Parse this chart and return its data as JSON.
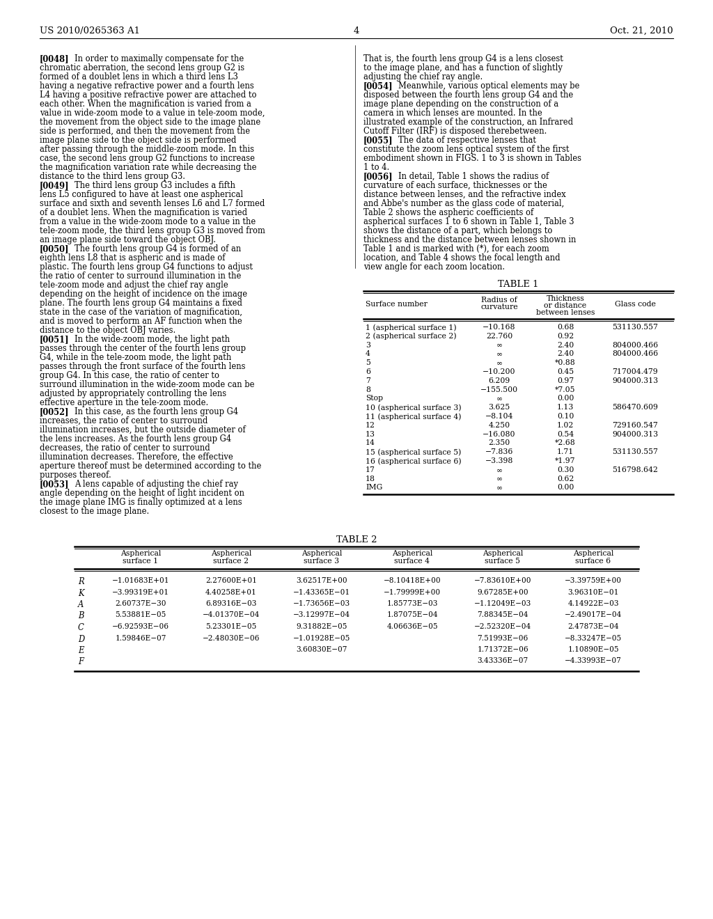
{
  "page_header_left": "US 2010/0265363 A1",
  "page_header_right": "Oct. 21, 2010",
  "page_number": "4",
  "background_color": "#ffffff",
  "left_paragraphs": [
    {
      "tag": "[0048]",
      "text": "In order to maximally compensate for the chromatic aberration, the second lens group G2 is formed of a doublet lens in which a third lens L3 having a negative refractive power and a fourth lens L4 having a positive refractive power are attached to each other. When the magnification is varied from a value in wide-zoom mode to a value in tele-zoom mode, the movement from the object side to the image plane side is performed, and then the movement from the image plane side to the object side is performed after passing through the middle-zoom mode. In this case, the second lens group G2 functions to increase the magnification variation rate while decreasing the distance to the third lens group G3."
    },
    {
      "tag": "[0049]",
      "text": "The third lens group G3 includes a fifth lens L5 configured to have at least one aspherical surface and sixth and seventh lenses L6 and L7 formed of a doublet lens. When the magnification is varied from a value in the wide-zoom mode to a value in the tele-zoom mode, the third lens group G3 is moved from an image plane side toward the object OBJ."
    },
    {
      "tag": "[0050]",
      "text": "The fourth lens group G4 is formed of an eighth lens L8 that is aspheric and is made of plastic. The fourth lens group G4 functions to adjust the ratio of center to surround illumination in the tele-zoom mode and adjust the chief ray angle depending on the height of incidence on the image plane. The fourth lens group G4 maintains a fixed state in the case of the variation of magnification, and is moved to perform an AF function when the distance to the object OBJ varies."
    },
    {
      "tag": "[0051]",
      "text": "In the wide-zoom mode, the light path passes through the center of the fourth lens group G4, while in the tele-zoom mode, the light path passes through the front surface of the fourth lens group G4. In this case, the ratio of center to surround illumination in the wide-zoom mode can be adjusted by appropriately controlling the lens effective aperture in the tele-zoom mode."
    },
    {
      "tag": "[0052]",
      "text": "In this case, as the fourth lens group G4 increases, the ratio of center to surround illumination increases, but the outside diameter of the lens increases. As the fourth lens group G4 decreases, the ratio of center to surround illumination decreases. Therefore, the effective aperture thereof must be determined according to the purposes thereof."
    },
    {
      "tag": "[0053]",
      "text": "A lens capable of adjusting the chief ray angle depending on the height of light incident on the image plane IMG is finally optimized at a lens closest to the image plane."
    }
  ],
  "right_paragraphs": [
    {
      "tag": "",
      "text": "That is, the fourth lens group G4 is a lens closest to the image plane, and has a function of slightly adjusting the chief ray angle."
    },
    {
      "tag": "[0054]",
      "text": "Meanwhile, various optical elements may be disposed between the fourth lens group G4 and the image plane depending on the construction of a camera in which lenses are mounted. In the illustrated example of the construction, an Infrared Cutoff Filter (IRF) is disposed therebetween."
    },
    {
      "tag": "[0055]",
      "text": "The data of respective lenses that constitute the zoom lens optical system of the first embodiment shown in FIGS. 1 to 3 is shown in Tables 1 to 4."
    },
    {
      "tag": "[0056]",
      "text": "In detail, Table 1 shows the radius of curvature of each surface, thicknesses or the distance between lenses, and the refractive index and Abbe's number as the glass code of material, Table 2 shows the aspheric coefficients of aspherical surfaces 1 to 6 shown in Table 1, Table 3 shows the distance of a part, which belongs to thickness and the distance between lenses shown in Table 1 and is marked with (*), for each zoom location, and Table 4 shows the focal length and view angle for each zoom location."
    }
  ],
  "table1_title": "TABLE 1",
  "table1_col_headers": [
    "Surface number",
    "Radius of\ncurvature",
    "Thickness\nor distance\nbetween lenses",
    "Glass code"
  ],
  "table1_rows": [
    [
      "1 (aspherical surface 1)",
      "−10.168",
      "0.68",
      "531130.557"
    ],
    [
      "2 (aspherical surface 2)",
      "22.760",
      "0.92",
      ""
    ],
    [
      "3",
      "∞",
      "2.40",
      "804000.466"
    ],
    [
      "4",
      "∞",
      "2.40",
      "804000.466"
    ],
    [
      "5",
      "∞",
      "*0.88",
      ""
    ],
    [
      "6",
      "−10.200",
      "0.45",
      "717004.479"
    ],
    [
      "7",
      "6.209",
      "0.97",
      "904000.313"
    ],
    [
      "8",
      "−155.500",
      "*7.05",
      ""
    ],
    [
      "Stop",
      "∞",
      "0.00",
      ""
    ],
    [
      "10 (aspherical surface 3)",
      "3.625",
      "1.13",
      "586470.609"
    ],
    [
      "11 (aspherical surface 4)",
      "−8.104",
      "0.10",
      ""
    ],
    [
      "12",
      "4.250",
      "1.02",
      "729160.547"
    ],
    [
      "13",
      "−16.080",
      "0.54",
      "904000.313"
    ],
    [
      "14",
      "2.350",
      "*2.68",
      ""
    ],
    [
      "15 (aspherical surface 5)",
      "−7.836",
      "1.71",
      "531130.557"
    ],
    [
      "16 (aspherical surface 6)",
      "−3.398",
      "*1.97",
      ""
    ],
    [
      "17",
      "∞",
      "0.30",
      "516798.642"
    ],
    [
      "18",
      "∞",
      "0.62",
      ""
    ],
    [
      "IMG",
      "∞",
      "0.00",
      ""
    ]
  ],
  "table2_title": "TABLE 2",
  "table2_col_headers": [
    "Aspherical\nsurface 1",
    "Aspherical\nsurface 2",
    "Aspherical\nsurface 3",
    "Aspherical\nsurface 4",
    "Aspherical\nsurface 5",
    "Aspherical\nsurface 6"
  ],
  "table2_row_labels": [
    "R",
    "K",
    "A",
    "B",
    "C",
    "D",
    "E",
    "F"
  ],
  "table2_data": [
    [
      "−1.01683E+01",
      "2.27600E+01",
      "3.62517E+00",
      "−8.10418E+00",
      "−7.83610E+00",
      "−3.39759E+00"
    ],
    [
      "−3.99319E+01",
      "4.40258E+01",
      "−1.43365E−01",
      "−1.79999E+00",
      "9.67285E+00",
      "3.96310E−01"
    ],
    [
      "2.60737E−30",
      "6.89316E−03",
      "−1.73656E−03",
      "1.85773E−03",
      "−1.12049E−03",
      "4.14922E−03"
    ],
    [
      "5.53881E−05",
      "−4.01370E−04",
      "−3.12997E−04",
      "1.87075E−04",
      "7.88345E−04",
      "−2.49017E−04"
    ],
    [
      "−6.92593E−06",
      "5.23301E−05",
      "9.31882E−05",
      "4.06636E−05",
      "−2.52320E−04",
      "2.47873E−04"
    ],
    [
      "1.59846E−07",
      "−2.48030E−06",
      "−1.01928E−05",
      "",
      "7.51993E−06",
      "−8.33247E−05"
    ],
    [
      "",
      "",
      "3.60830E−07",
      "",
      "1.71372E−06",
      "1.10890E−05"
    ],
    [
      "",
      "",
      "",
      "",
      "3.43336E−07",
      "−4.33993E−07"
    ]
  ]
}
